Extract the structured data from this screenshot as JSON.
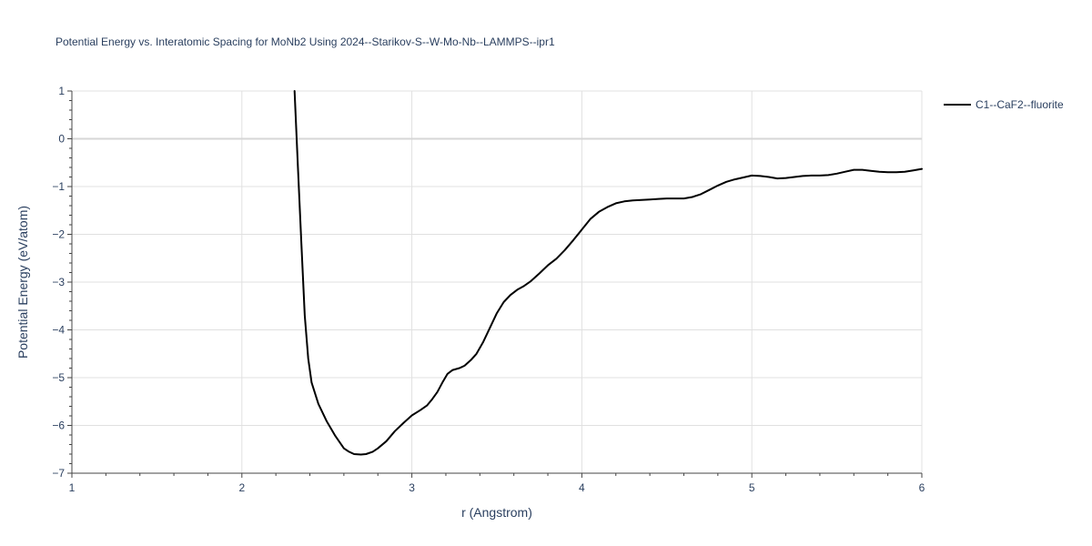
{
  "chart_data": {
    "type": "line",
    "title": "Potential Energy vs. Interatomic Spacing for MoNb2 Using 2024--Starikov-S--W-Mo-Nb--LAMMPS--ipr1",
    "xlabel": "r (Angstrom)",
    "ylabel": "Potential Energy (eV/atom)",
    "xlim": [
      1,
      6
    ],
    "ylim": [
      -7,
      1
    ],
    "x_ticks": [
      1,
      2,
      3,
      4,
      5,
      6
    ],
    "x_tick_labels": [
      "1",
      "2",
      "3",
      "4",
      "5",
      "6"
    ],
    "y_ticks": [
      1,
      0,
      -1,
      -2,
      -3,
      -4,
      -5,
      -6,
      -7
    ],
    "y_tick_labels": [
      "1",
      "0",
      "−1",
      "−2",
      "−3",
      "−4",
      "−5",
      "−6",
      "−7"
    ],
    "grid": true,
    "legend_position": "top-right",
    "series": [
      {
        "name": "C1--CaF2--fluorite",
        "color": "#000000",
        "x": [
          2.31,
          2.33,
          2.35,
          2.37,
          2.39,
          2.41,
          2.45,
          2.5,
          2.55,
          2.6,
          2.63,
          2.66,
          2.7,
          2.73,
          2.77,
          2.8,
          2.85,
          2.9,
          2.95,
          3.0,
          3.05,
          3.09,
          3.12,
          3.15,
          3.18,
          3.21,
          3.24,
          3.28,
          3.31,
          3.35,
          3.38,
          3.42,
          3.46,
          3.5,
          3.54,
          3.58,
          3.62,
          3.66,
          3.7,
          3.75,
          3.8,
          3.85,
          3.9,
          3.95,
          4.0,
          4.05,
          4.1,
          4.15,
          4.2,
          4.25,
          4.3,
          4.35,
          4.4,
          4.45,
          4.5,
          4.55,
          4.6,
          4.65,
          4.7,
          4.75,
          4.8,
          4.85,
          4.9,
          4.95,
          5.0,
          5.05,
          5.1,
          5.15,
          5.2,
          5.25,
          5.3,
          5.35,
          5.4,
          5.45,
          5.5,
          5.55,
          5.6,
          5.65,
          5.7,
          5.75,
          5.8,
          5.85,
          5.9,
          5.95,
          6.0
        ],
        "y": [
          1.0,
          -0.6,
          -2.2,
          -3.7,
          -4.6,
          -5.1,
          -5.55,
          -5.92,
          -6.22,
          -6.48,
          -6.55,
          -6.6,
          -6.61,
          -6.6,
          -6.55,
          -6.48,
          -6.33,
          -6.12,
          -5.95,
          -5.79,
          -5.68,
          -5.58,
          -5.45,
          -5.3,
          -5.1,
          -4.92,
          -4.84,
          -4.8,
          -4.75,
          -4.62,
          -4.5,
          -4.25,
          -3.95,
          -3.65,
          -3.42,
          -3.27,
          -3.16,
          -3.08,
          -2.98,
          -2.82,
          -2.65,
          -2.51,
          -2.33,
          -2.12,
          -1.9,
          -1.68,
          -1.53,
          -1.43,
          -1.35,
          -1.31,
          -1.29,
          -1.28,
          -1.27,
          -1.26,
          -1.25,
          -1.25,
          -1.25,
          -1.22,
          -1.16,
          -1.07,
          -0.98,
          -0.9,
          -0.85,
          -0.81,
          -0.77,
          -0.78,
          -0.8,
          -0.83,
          -0.82,
          -0.8,
          -0.78,
          -0.77,
          -0.77,
          -0.76,
          -0.73,
          -0.69,
          -0.65,
          -0.65,
          -0.67,
          -0.69,
          -0.7,
          -0.7,
          -0.69,
          -0.66,
          -0.63
        ]
      }
    ]
  }
}
